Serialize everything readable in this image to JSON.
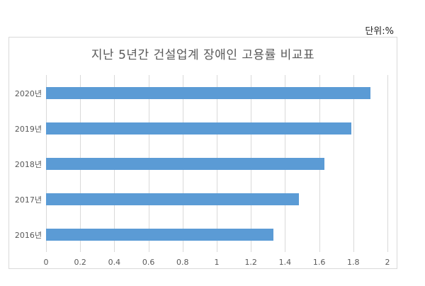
{
  "unit_label": "단위:%",
  "colors": {
    "bar": "#5b9bd5",
    "grid": "#d9d9d9",
    "text": "#595959"
  },
  "chart_data": {
    "type": "bar",
    "orientation": "horizontal",
    "title": "지난 5년간 건설업계 장애인 고용률 비교표",
    "unit": "단위:%",
    "categories": [
      "2020년",
      "2019년",
      "2018년",
      "2017년",
      "2016년"
    ],
    "values": [
      1.9,
      1.79,
      1.63,
      1.48,
      1.33
    ],
    "xlabel": "",
    "ylabel": "",
    "xlim": [
      0,
      2
    ],
    "x_ticks": [
      "0",
      "0.2",
      "0.4",
      "0.6",
      "0.8",
      "1",
      "1.2",
      "1.4",
      "1.6",
      "1.8",
      "2"
    ],
    "grid": true,
    "legend": "none"
  }
}
